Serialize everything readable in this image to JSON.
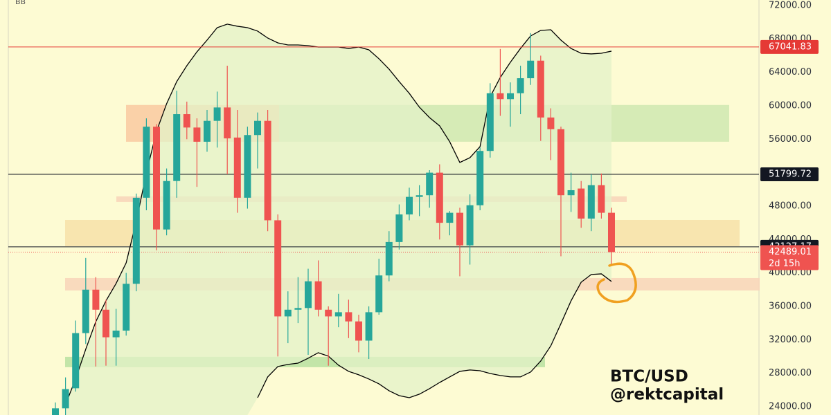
{
  "chart_data": {
    "type": "candlestick",
    "indicator": "BB",
    "title": "BTC/USD",
    "subtitle": "@rektcapital",
    "up_color": "#26a69a",
    "down_color": "#ef5350",
    "open": [
      23000,
      23800,
      26200,
      32800,
      38000,
      35600,
      32300,
      33100,
      38700,
      49000,
      57500,
      45200,
      51000,
      59000,
      57400,
      55700,
      58200,
      59800,
      56200,
      49000,
      56500,
      58200,
      46300,
      34800,
      35600,
      35800,
      39000,
      35600,
      34800,
      35300,
      34200,
      31900,
      35300,
      39700,
      43700,
      47000,
      49100,
      49300,
      52000,
      46000,
      47200,
      43300,
      48100,
      54600,
      61500,
      60800,
      61500,
      63300,
      65400,
      58600,
      57200,
      49300,
      50100,
      46500,
      50500,
      47200
    ],
    "high": [
      24500,
      27500,
      34300,
      41800,
      39500,
      36800,
      35700,
      40000,
      49500,
      58500,
      57800,
      52500,
      61800,
      60500,
      58500,
      59500,
      61700,
      64800,
      59500,
      57500,
      59200,
      59500,
      47000,
      37800,
      39500,
      40500,
      41500,
      36000,
      37500,
      36800,
      35000,
      36000,
      41700,
      45000,
      48200,
      50200,
      50500,
      52300,
      53000,
      47400,
      47800,
      49400,
      55000,
      62700,
      66800,
      62800,
      64800,
      68700,
      66000,
      59700,
      57500,
      52000,
      51000,
      51800,
      51900,
      47800
    ],
    "low": [
      23000,
      23000,
      25800,
      31500,
      28800,
      28900,
      28900,
      32500,
      37800,
      47500,
      42700,
      44500,
      49000,
      56000,
      50300,
      54500,
      55000,
      51800,
      47200,
      47700,
      52500,
      45000,
      30000,
      31600,
      34000,
      30200,
      34800,
      28900,
      33500,
      32200,
      30500,
      29700,
      35000,
      39000,
      42800,
      46300,
      46800,
      47800,
      44000,
      44500,
      39600,
      41000,
      47500,
      53800,
      58800,
      57500,
      59000,
      62500,
      55800,
      53500,
      42000,
      47300,
      45400,
      45000,
      46500,
      41000
    ],
    "close": [
      23800,
      26100,
      32800,
      38000,
      35600,
      32300,
      33100,
      38700,
      49000,
      57500,
      45200,
      51000,
      59000,
      57400,
      55700,
      58200,
      59800,
      56100,
      49000,
      56500,
      58200,
      46300,
      34800,
      35600,
      35800,
      39000,
      35600,
      34800,
      35300,
      34200,
      31900,
      35300,
      39700,
      43700,
      47000,
      49100,
      49300,
      52000,
      46000,
      47200,
      43300,
      48100,
      54600,
      61500,
      60800,
      61500,
      63300,
      65400,
      58600,
      57200,
      49300,
      49900,
      46500,
      50500,
      47200,
      42489.01
    ],
    "countdown": "2d 15h",
    "bands": {
      "color": "#000000",
      "fill": "#e3f2c8",
      "upper": [
        null,
        24250,
        27310,
        30870,
        34180,
        36660,
        38730,
        41210,
        46180,
        51970,
        56940,
        60250,
        62900,
        64800,
        66460,
        67860,
        69350,
        69770,
        69520,
        69350,
        68940,
        68110,
        67530,
        67280,
        67280,
        67200,
        67030,
        67030,
        67030,
        66860,
        67030,
        66700,
        65630,
        64390,
        62900,
        61490,
        59830,
        58590,
        57600,
        55700,
        53220,
        53790,
        55120,
        61080,
        63390,
        65210,
        66860,
        68360,
        69020,
        69100,
        67860,
        66860,
        66290,
        66210,
        66290,
        66540
      ],
      "lower": [
        null,
        null,
        null,
        null,
        null,
        null,
        null,
        null,
        null,
        null,
        null,
        null,
        null,
        null,
        null,
        null,
        null,
        null,
        null,
        null,
        25070,
        27560,
        28800,
        29050,
        29210,
        29790,
        30450,
        30040,
        28960,
        28220,
        27810,
        27310,
        26730,
        25900,
        25320,
        25070,
        25490,
        26150,
        26890,
        27560,
        28220,
        28390,
        28300,
        27970,
        27730,
        27560,
        27560,
        28140,
        29460,
        31280,
        33930,
        36660,
        38890,
        39810,
        39890,
        38980
      ]
    },
    "levels": [
      {
        "value": 67041.83,
        "color": "#e53935"
      },
      {
        "value": 51799.72,
        "color": "#131722"
      },
      {
        "value": 43127.17,
        "color": "#131722"
      }
    ],
    "zones": [
      {
        "range": [
          55700,
          60100
        ],
        "color": "#f9c9a0"
      },
      {
        "range": [
          55700,
          60100
        ],
        "color": "#cfe8b0"
      },
      {
        "range": [
          48500,
          49160
        ],
        "color": "#f8d3b8"
      },
      {
        "range": [
          43200,
          46340
        ],
        "color": "#f7e0a8"
      },
      {
        "range": [
          37900,
          39390
        ],
        "color": "#f8d3b8"
      },
      {
        "range": [
          28720,
          29960
        ],
        "color": "#b9e0a0"
      }
    ],
    "ylim": [
      23000,
      72660
    ],
    "yticks": [
      {
        "value": 24000,
        "label": "24000.00"
      },
      {
        "value": 28000,
        "label": "28000.00"
      },
      {
        "value": 32000,
        "label": "32000.00"
      },
      {
        "value": 36000,
        "label": "36000.00"
      },
      {
        "value": 40000,
        "label": "40000.00"
      },
      {
        "value": 44000,
        "label": "44000.00"
      },
      {
        "value": 48000,
        "label": "48000.00"
      },
      {
        "value": 52000,
        "label": "52000.00"
      },
      {
        "value": 56000,
        "label": "56000.00"
      },
      {
        "value": 60000,
        "label": "60000.00"
      },
      {
        "value": 64000,
        "label": "64000.00"
      },
      {
        "value": 68000,
        "label": "68000.00"
      },
      {
        "value": 72000,
        "label": "72000.00"
      }
    ],
    "grid": false
  }
}
